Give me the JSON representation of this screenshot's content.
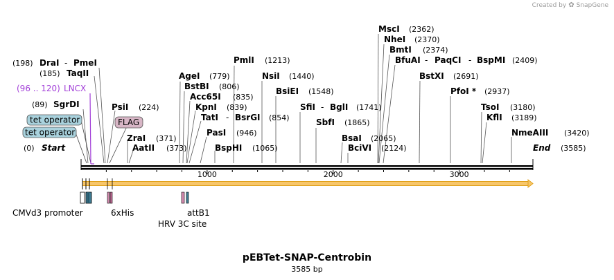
{
  "app": {
    "credit": "Created by",
    "brand": "SnapGene",
    "brand_icon": "snapgene-logo-icon"
  },
  "plasmid": {
    "name": "pEBTet-SNAP-Centrobin",
    "length_label": "3585 bp",
    "length": 3585
  },
  "colors": {
    "backbone": "#000000",
    "orf_fill": "#f7c66b",
    "orf_stroke": "#e0a11b",
    "operator_fill": "#a9d2dd",
    "flag_fill": "#d8b6c6",
    "lncx": "#a23fd8",
    "promoter_fill": "#3f7e95"
  },
  "ends": [
    {
      "name": "Start",
      "pos_label": "(0)",
      "bp": 0
    },
    {
      "name": "End",
      "pos_label": "(3585)",
      "bp": 3585
    }
  ],
  "enzymes": [
    {
      "name": "DraI",
      "pair": "PmeI",
      "pos_label": "(198)",
      "bp": 198
    },
    {
      "name": "TaqII",
      "pos_label": "(185)",
      "bp": 185
    },
    {
      "name": "SgrDI",
      "pos_label": "(89)",
      "bp": 89
    },
    {
      "name": "PsiI",
      "pos_label": "(224)",
      "bp": 224
    },
    {
      "name": "ZraI",
      "pos_label": "(371)",
      "bp": 371
    },
    {
      "name": "AatII",
      "pos_label": "(373)",
      "bp": 373
    },
    {
      "name": "AgeI",
      "pos_label": "(779)",
      "bp": 779
    },
    {
      "name": "BstBI",
      "pos_label": "(806)",
      "bp": 806
    },
    {
      "name": "Acc65I",
      "pos_label": "(835)",
      "bp": 835
    },
    {
      "name": "KpnI",
      "pos_label": "(839)",
      "bp": 839
    },
    {
      "name": "TatI",
      "pair": "BsrGI",
      "pos_label": "(854)",
      "bp": 854
    },
    {
      "name": "PasI",
      "pos_label": "(946)",
      "bp": 946
    },
    {
      "name": "BspHI",
      "pos_label": "(1065)",
      "bp": 1065
    },
    {
      "name": "PmlI",
      "pos_label": "(1213)",
      "bp": 1213
    },
    {
      "name": "NsiI",
      "pos_label": "(1440)",
      "bp": 1440
    },
    {
      "name": "BsiEI",
      "pos_label": "(1548)",
      "bp": 1548
    },
    {
      "name": "SfiI",
      "pair": "BglI",
      "pos_label": "(1741)",
      "bp": 1741
    },
    {
      "name": "SbfI",
      "pos_label": "(1865)",
      "bp": 1865
    },
    {
      "name": "BsaI",
      "pos_label": "(2065)",
      "bp": 2065
    },
    {
      "name": "BciVI",
      "pos_label": "(2124)",
      "bp": 2124
    },
    {
      "name": "MscI",
      "pos_label": "(2362)",
      "bp": 2362
    },
    {
      "name": "NheI",
      "pos_label": "(2370)",
      "bp": 2370
    },
    {
      "name": "BmtI",
      "pos_label": "(2374)",
      "bp": 2374
    },
    {
      "name": "BfuAI",
      "pair": "PaqCI",
      "pair2": "BspMI",
      "pos_label": "(2409)",
      "bp": 2409
    },
    {
      "name": "BstXI",
      "pos_label": "(2691)",
      "bp": 2691
    },
    {
      "name": "PfoI *",
      "pos_label": "(2937)",
      "bp": 2937
    },
    {
      "name": "TsoI",
      "pos_label": "(3180)",
      "bp": 3180
    },
    {
      "name": "KflI",
      "pos_label": "(3189)",
      "bp": 3189
    },
    {
      "name": "NmeAIII",
      "pos_label": "(3420)",
      "bp": 3420
    }
  ],
  "primer_binding": {
    "name": "LNCX",
    "range_label": "(96 .. 120)",
    "start": 96,
    "end": 120
  },
  "features_top": [
    {
      "name": "tet operator",
      "kind": "operator"
    },
    {
      "name": "tet operator",
      "kind": "operator"
    },
    {
      "name": "FLAG",
      "kind": "flag"
    }
  ],
  "features_bottom": [
    {
      "name": "CMVd3 promoter"
    },
    {
      "name": "6xHis"
    },
    {
      "name": "HRV 3C site"
    },
    {
      "name": "attB1"
    }
  ],
  "ruler": {
    "ticks": [
      1000,
      2000,
      3000
    ],
    "tick_labels": [
      "1000",
      "2000",
      "3000"
    ]
  }
}
